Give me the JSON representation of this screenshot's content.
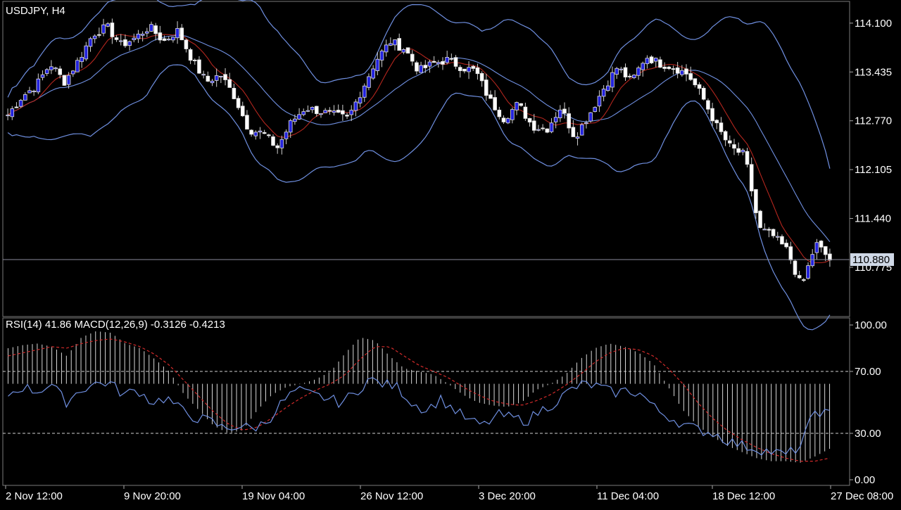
{
  "chart_data": [
    {
      "type": "candlestick",
      "title": "USDJPY, H4",
      "symbol": "USDJPY",
      "timeframe": "H4",
      "ylim": [
        110.2,
        114.3
      ],
      "yticks": [
        "114.100",
        "113.435",
        "112.770",
        "112.105",
        "111.440",
        "110.775"
      ],
      "current_price": "110.880",
      "xticks": [
        "2 Nov 12:00",
        "9 Nov 20:00",
        "19 Nov 04:00",
        "26 Nov 12:00",
        "3 Dec 20:00",
        "11 Dec 04:00",
        "18 Dec 12:00",
        "27 Dec 08:00"
      ],
      "close_path": [
        112.85,
        113.1,
        113.25,
        113.55,
        113.3,
        113.6,
        113.95,
        114.05,
        113.8,
        113.9,
        114.05,
        113.85,
        114.0,
        113.6,
        113.3,
        113.4,
        113.1,
        112.65,
        112.6,
        112.4,
        112.75,
        112.95,
        112.9,
        112.85,
        112.8,
        113.2,
        113.6,
        113.85,
        113.75,
        113.45,
        113.55,
        113.6,
        113.5,
        113.45,
        113.05,
        112.8,
        113.0,
        112.7,
        112.65,
        112.95,
        112.55,
        112.85,
        113.2,
        113.5,
        113.3,
        113.65,
        113.55,
        113.5,
        113.4,
        113.1,
        112.7,
        112.4,
        112.3,
        111.3,
        111.2,
        111.0,
        110.5,
        111.1,
        110.88
      ],
      "indicators": [
        "Bollinger Bands",
        "Moving Average"
      ]
    },
    {
      "type": "line",
      "title": "RSI(14) 41.86 MACD(12,26,9) -0.3126 -0.4213",
      "rsi_label": "RSI(14)",
      "rsi_value": "41.86",
      "macd_label": "MACD(12,26,9)",
      "macd_value": "-0.3126",
      "signal_value": "-0.4213",
      "ylim": [
        0,
        100
      ],
      "yticks": [
        "100.00",
        "70.00",
        "30.00",
        "0.00"
      ],
      "levels": [
        70,
        30
      ],
      "rsi_path": [
        55,
        60,
        57,
        62,
        50,
        58,
        62,
        63,
        55,
        58,
        50,
        53,
        45,
        40,
        38,
        33,
        35,
        33,
        38,
        50,
        58,
        55,
        53,
        50,
        55,
        65,
        62,
        60,
        50,
        45,
        52,
        45,
        38,
        35,
        42,
        40,
        38,
        45,
        50,
        58,
        62,
        60,
        56,
        58,
        55,
        45,
        40,
        35,
        32,
        30,
        25,
        22,
        20,
        18,
        16,
        22,
        45,
        42
      ],
      "macd_path": [
        85,
        87,
        88,
        86,
        80,
        92,
        96,
        95,
        88,
        85,
        78,
        70,
        55,
        45,
        35,
        30,
        32,
        45,
        55,
        60,
        62,
        65,
        70,
        82,
        92,
        90,
        80,
        72,
        70,
        68,
        62,
        55,
        50,
        48,
        47,
        50,
        58,
        62,
        68,
        78,
        85,
        88,
        86,
        82,
        75,
        60,
        45,
        35,
        28,
        22,
        18,
        14,
        12,
        12,
        11,
        15,
        20
      ],
      "signal_path": [
        80,
        82,
        84,
        86,
        85,
        88,
        90,
        91,
        89,
        86,
        81,
        74,
        64,
        54,
        44,
        36,
        32,
        34,
        40,
        47,
        53,
        58,
        62,
        68,
        78,
        86,
        86,
        80,
        74,
        70,
        66,
        60,
        55,
        51,
        49,
        48,
        51,
        55,
        61,
        68,
        76,
        82,
        85,
        84,
        80,
        72,
        62,
        50,
        40,
        32,
        26,
        21,
        17,
        14,
        12,
        12,
        14
      ]
    }
  ]
}
